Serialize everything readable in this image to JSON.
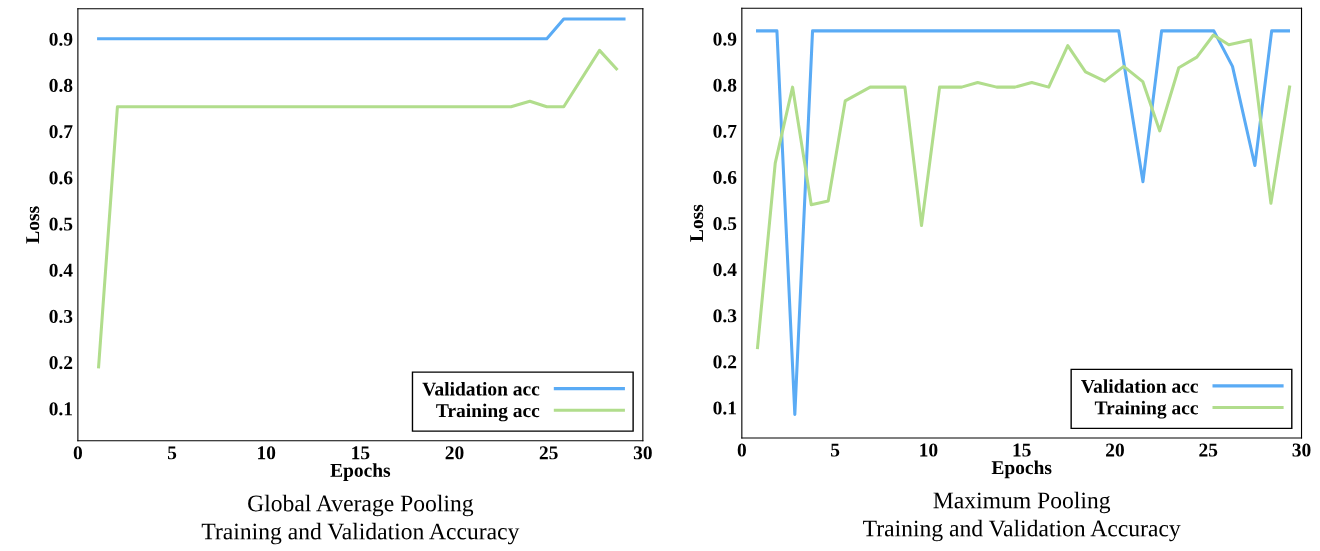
{
  "chart_data": [
    {
      "type": "line",
      "title": "Global Average Pooling\nTraining and Validation Accuracy",
      "xlabel": "Epochs",
      "ylabel": "Loss",
      "xlim": [
        0,
        30
      ],
      "xticks": [
        0,
        5,
        10,
        15,
        20,
        25,
        30
      ],
      "ylim": [
        0.03,
        0.965
      ],
      "yticks": [
        0.1,
        0.2,
        0.3,
        0.4,
        0.5,
        0.6,
        0.7,
        0.8,
        0.9
      ],
      "grid": false,
      "legend": "bottom right",
      "marker": "none",
      "line_style": "solid",
      "series": [
        {
          "name": "Validation acc",
          "color": "#5aabf5",
          "x": [
            1.1,
            24.9,
            25.8,
            29.0
          ],
          "values": [
            0.9,
            0.9,
            0.943,
            0.943
          ]
        },
        {
          "name": "Training acc",
          "color": "#b1dd8c",
          "x": [
            1.1,
            2.1,
            23.0,
            24.0,
            24.9,
            25.8,
            27.7,
            28.6
          ],
          "values": [
            0.19,
            0.753,
            0.753,
            0.765,
            0.753,
            0.753,
            0.875,
            0.835
          ]
        }
      ]
    },
    {
      "type": "line",
      "title": "Maximum Pooling\nTraining and Validation Accuracy",
      "xlabel": "Epochs",
      "ylabel": "Loss",
      "xlim": [
        0,
        30
      ],
      "xticks": [
        0,
        5,
        10,
        15,
        20,
        25,
        30
      ],
      "ylim": [
        0.034,
        0.966
      ],
      "yticks": [
        0.1,
        0.2,
        0.3,
        0.4,
        0.5,
        0.6,
        0.7,
        0.8,
        0.9
      ],
      "grid": false,
      "legend": "bottom right",
      "marker": "none",
      "line_style": "solid",
      "series": [
        {
          "name": "Validation acc",
          "color": "#5aabf5",
          "x": [
            0.84,
            1.88,
            2.84,
            3.79,
            20.2,
            21.5,
            22.5,
            25.3,
            26.3,
            27.5,
            28.4,
            29.3
          ],
          "values": [
            0.917,
            0.917,
            0.085,
            0.917,
            0.917,
            0.59,
            0.917,
            0.917,
            0.84,
            0.625,
            0.917,
            0.917
          ]
        },
        {
          "name": "Training acc",
          "color": "#b1dd8c",
          "x": [
            0.84,
            1.79,
            2.72,
            3.72,
            4.63,
            5.54,
            6.88,
            8.74,
            9.63,
            10.6,
            11.78,
            12.64,
            13.66,
            14.64,
            15.54,
            16.45,
            17.47,
            18.42,
            19.45,
            20.47,
            21.49,
            22.4,
            23.42,
            24.39,
            25.28,
            26.1,
            27.27,
            28.36,
            29.36
          ],
          "values": [
            0.23,
            0.63,
            0.795,
            0.54,
            0.548,
            0.765,
            0.795,
            0.795,
            0.495,
            0.795,
            0.795,
            0.805,
            0.795,
            0.795,
            0.805,
            0.795,
            0.885,
            0.828,
            0.808,
            0.84,
            0.807,
            0.7,
            0.837,
            0.86,
            0.908,
            0.887,
            0.897,
            0.543,
            0.795
          ]
        }
      ]
    }
  ]
}
